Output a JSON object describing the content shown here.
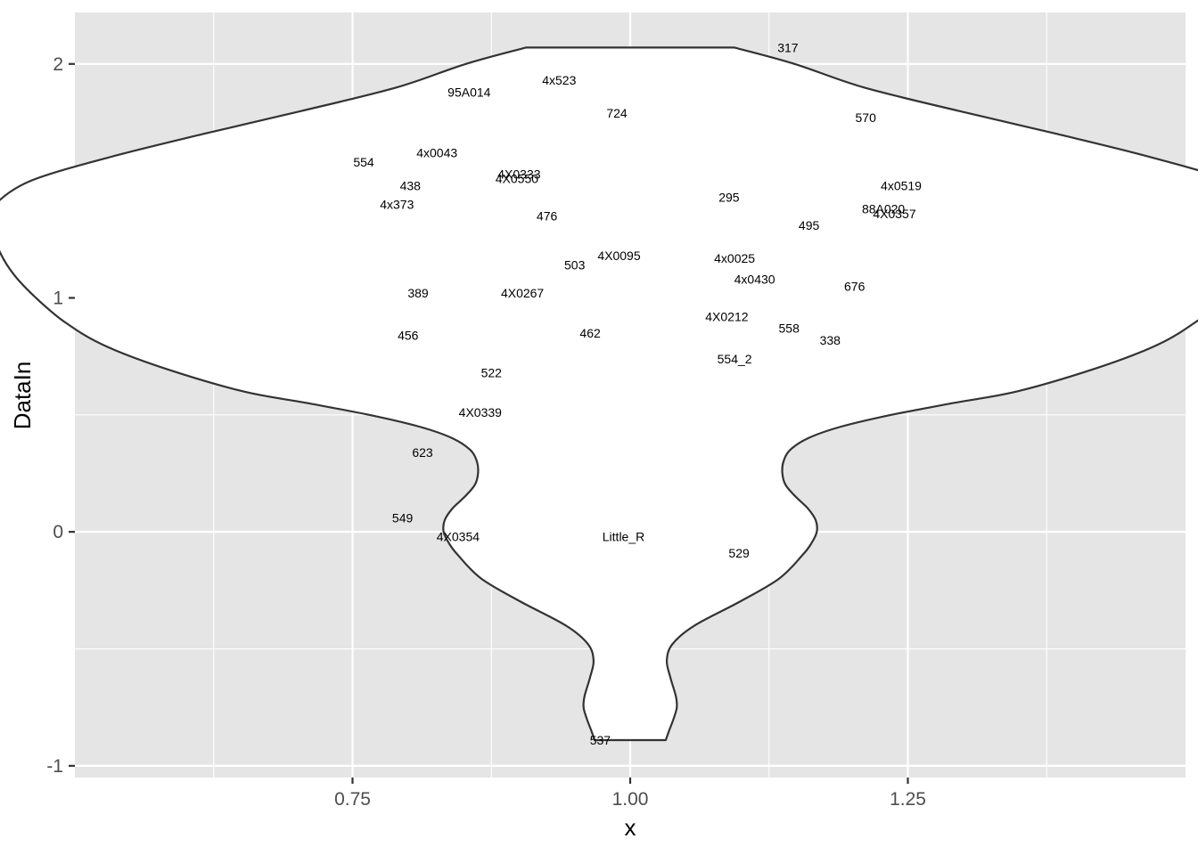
{
  "chart_data": {
    "type": "violin",
    "xlabel": "x",
    "ylabel": "DataIn",
    "x_ticks": [
      "0.75",
      "1.00",
      "1.25"
    ],
    "y_ticks": [
      "-1",
      "0",
      "1",
      "2"
    ],
    "xlim": [
      0.5,
      1.5
    ],
    "ylim": [
      -1.05,
      2.22
    ],
    "grid": true,
    "background": "#e5e5e5",
    "violin": {
      "x": 1.0,
      "y_min": -0.89,
      "y_max": 2.07,
      "half_width_profile": [
        [
          -0.89,
          0.032
        ],
        [
          -0.85,
          0.035
        ],
        [
          -0.8,
          0.039
        ],
        [
          -0.75,
          0.042
        ],
        [
          -0.7,
          0.041
        ],
        [
          -0.62,
          0.036
        ],
        [
          -0.55,
          0.033
        ],
        [
          -0.48,
          0.038
        ],
        [
          -0.4,
          0.058
        ],
        [
          -0.3,
          0.098
        ],
        [
          -0.2,
          0.134
        ],
        [
          -0.1,
          0.155
        ],
        [
          -0.05,
          0.163
        ],
        [
          0.0,
          0.168
        ],
        [
          0.05,
          0.167
        ],
        [
          0.1,
          0.16
        ],
        [
          0.15,
          0.149
        ],
        [
          0.2,
          0.14
        ],
        [
          0.25,
          0.137
        ],
        [
          0.3,
          0.138
        ],
        [
          0.35,
          0.144
        ],
        [
          0.4,
          0.16
        ],
        [
          0.45,
          0.19
        ],
        [
          0.5,
          0.235
        ],
        [
          0.55,
          0.29
        ],
        [
          0.6,
          0.348
        ],
        [
          0.7,
          0.42
        ],
        [
          0.8,
          0.475
        ],
        [
          0.9,
          0.51
        ],
        [
          1.0,
          0.535
        ],
        [
          1.1,
          0.555
        ],
        [
          1.2,
          0.568
        ],
        [
          1.3,
          0.575
        ],
        [
          1.35,
          0.576
        ],
        [
          1.4,
          0.572
        ],
        [
          1.5,
          0.54
        ],
        [
          1.6,
          0.47
        ],
        [
          1.7,
          0.385
        ],
        [
          1.8,
          0.295
        ],
        [
          1.9,
          0.21
        ],
        [
          2.0,
          0.148
        ],
        [
          2.07,
          0.094
        ]
      ]
    },
    "points": [
      {
        "label": "317",
        "x": 1.142,
        "y": 2.07
      },
      {
        "label": "4x523",
        "x": 0.936,
        "y": 1.93
      },
      {
        "label": "95A014",
        "x": 0.855,
        "y": 1.88
      },
      {
        "label": "724",
        "x": 0.988,
        "y": 1.79
      },
      {
        "label": "570",
        "x": 1.212,
        "y": 1.77
      },
      {
        "label": "4x0043",
        "x": 0.826,
        "y": 1.62
      },
      {
        "label": "554",
        "x": 0.76,
        "y": 1.58
      },
      {
        "label": "4X0333",
        "x": 0.9,
        "y": 1.53
      },
      {
        "label": "4X0550",
        "x": 0.898,
        "y": 1.51
      },
      {
        "label": "438",
        "x": 0.802,
        "y": 1.48
      },
      {
        "label": "4x0519",
        "x": 1.244,
        "y": 1.48
      },
      {
        "label": "295",
        "x": 1.089,
        "y": 1.43
      },
      {
        "label": "4x373",
        "x": 0.79,
        "y": 1.4
      },
      {
        "label": "88A020",
        "x": 1.228,
        "y": 1.38
      },
      {
        "label": "4X0357",
        "x": 1.238,
        "y": 1.36
      },
      {
        "label": "476",
        "x": 0.925,
        "y": 1.35
      },
      {
        "label": "495",
        "x": 1.161,
        "y": 1.31
      },
      {
        "label": "4X0095",
        "x": 0.99,
        "y": 1.18
      },
      {
        "label": "4x0025",
        "x": 1.094,
        "y": 1.17
      },
      {
        "label": "503",
        "x": 0.95,
        "y": 1.14
      },
      {
        "label": "4x0430",
        "x": 1.112,
        "y": 1.08
      },
      {
        "label": "676",
        "x": 1.202,
        "y": 1.05
      },
      {
        "label": "389",
        "x": 0.809,
        "y": 1.02
      },
      {
        "label": "4X0267",
        "x": 0.903,
        "y": 1.02
      },
      {
        "label": "4X0212",
        "x": 1.087,
        "y": 0.92
      },
      {
        "label": "558",
        "x": 1.143,
        "y": 0.87
      },
      {
        "label": "462",
        "x": 0.964,
        "y": 0.85
      },
      {
        "label": "456",
        "x": 0.8,
        "y": 0.84
      },
      {
        "label": "338",
        "x": 1.18,
        "y": 0.82
      },
      {
        "label": "554_2",
        "x": 1.094,
        "y": 0.74
      },
      {
        "label": "522",
        "x": 0.875,
        "y": 0.68
      },
      {
        "label": "4X0339",
        "x": 0.865,
        "y": 0.51
      },
      {
        "label": "623",
        "x": 0.813,
        "y": 0.34
      },
      {
        "label": "549",
        "x": 0.795,
        "y": 0.06
      },
      {
        "label": "4X0354",
        "x": 0.845,
        "y": -0.02
      },
      {
        "label": "Little_R",
        "x": 0.994,
        "y": -0.02
      },
      {
        "label": "529",
        "x": 1.098,
        "y": -0.09
      },
      {
        "label": "537",
        "x": 0.973,
        "y": -0.89
      }
    ],
    "colors": {
      "panel": "#e5e5e5",
      "grid_major": "#ffffff",
      "violin_fill": "#ffffff",
      "violin_stroke": "#333333",
      "tick": "#333333",
      "tick_text": "#4d4d4d"
    }
  }
}
